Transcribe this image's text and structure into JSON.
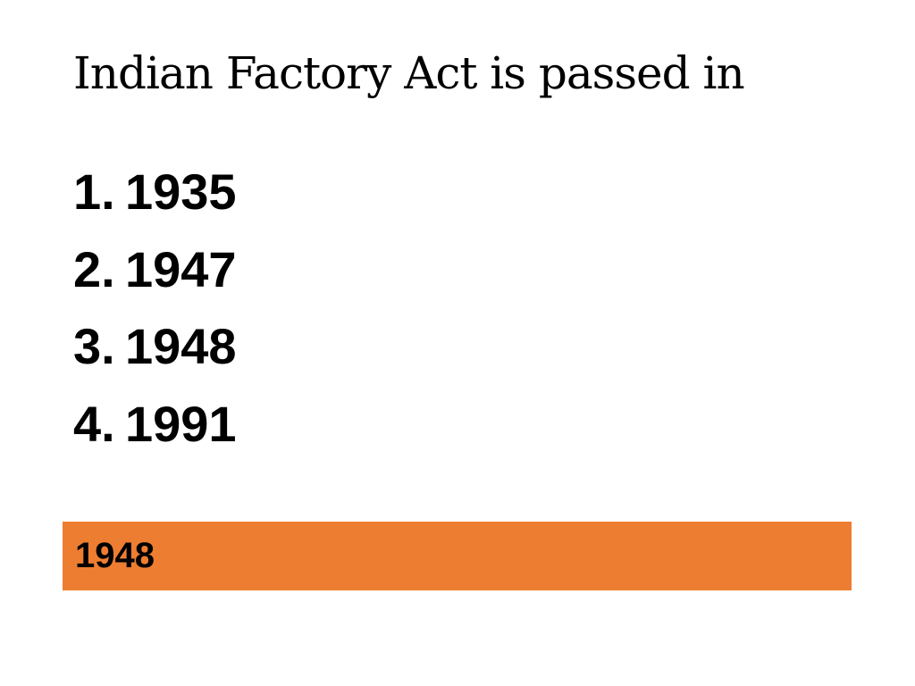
{
  "title": "Indian Factory Act is passed in",
  "options": [
    {
      "number": "1.",
      "text": "1935"
    },
    {
      "number": "2.",
      "text": "1947"
    },
    {
      "number": "3.",
      "text": "1948"
    },
    {
      "number": "4.",
      "text": "1991"
    }
  ],
  "answer": "1948"
}
